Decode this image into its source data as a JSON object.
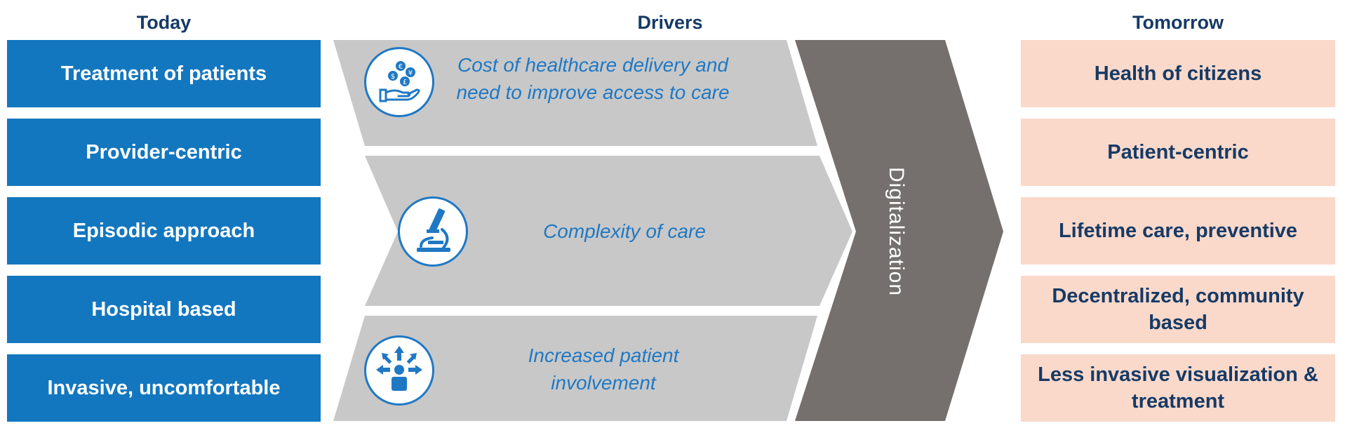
{
  "headers": {
    "today": "Today",
    "drivers": "Drivers",
    "tomorrow": "Tomorrow"
  },
  "today": [
    "Treatment of patients",
    "Provider-centric",
    "Episodic approach",
    "Hospital based",
    "Invasive, uncomfortable"
  ],
  "drivers": [
    {
      "text": "Cost of healthcare delivery and need to improve access to care",
      "icon": "hand-coins-icon"
    },
    {
      "text": "Complexity of care",
      "icon": "microscope-icon"
    },
    {
      "text": "Increased patient involvement",
      "icon": "patient-network-icon"
    }
  ],
  "digitalization": "Digitalization",
  "tomorrow": [
    "Health of citizens",
    "Patient-centric",
    "Lifetime care, preventive",
    "Decentralized, community based",
    "Less invasive visualization & treatment"
  ],
  "colors": {
    "today_fill": "#1377bf",
    "tomorrow_fill": "#fad9ca",
    "driver_fill": "#c8c8c8",
    "digitalization_fill": "#75706d",
    "header_text": "#163a66",
    "driver_text": "#1f78c4"
  }
}
